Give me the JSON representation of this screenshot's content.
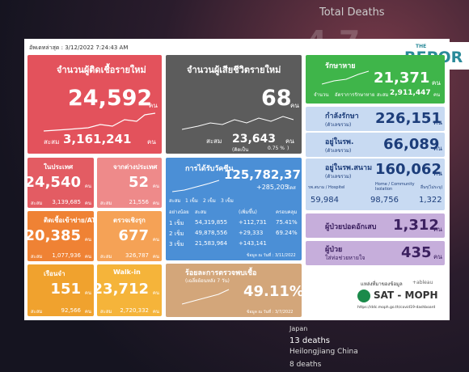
{
  "header": {
    "updated": "อัพเดทล่าสุด : 3/12/2022 7:24:43 AM"
  },
  "background": {
    "title": "Total Deaths",
    "items": [
      "Japan",
      "13 deaths",
      "Heilongjiang China",
      "8 deaths"
    ]
  },
  "logo": {
    "top": "THE",
    "main": "REPOR"
  },
  "new_cases": {
    "title": "จำนวนผู้ติดเชื้อรายใหม่",
    "value": "24,592",
    "unit": "คน",
    "total_label": "สะสม",
    "total": "3,161,241",
    "total_unit": "คน"
  },
  "new_deaths": {
    "title": "จำนวนผู้เสียชีวิตรายใหม่",
    "value": "68",
    "unit": "คน",
    "total_label": "สะสม",
    "total": "23,643",
    "total_unit": "คน",
    "pct_open": "(คิดเป็น",
    "pct": "0.75 %",
    "pct_close": ")"
  },
  "recovered": {
    "title": "รักษาหาย",
    "value": "21,371",
    "unit": "คน",
    "legend": [
      "จำนวน",
      "อัตราการรักษาหาย"
    ],
    "total_label": "สะสม",
    "total": "2,911,447",
    "total_unit": "คน"
  },
  "treating": {
    "title": "กำลังรักษา",
    "sub": "(ตัวเลขรวม)",
    "value": "226,151",
    "unit": "คน"
  },
  "hospital": {
    "title": "อยู่ในรพ.",
    "sub": "(ตัวเลขรวม)",
    "value": "66,089",
    "unit": "คน"
  },
  "field": {
    "title": "อยู่ในรพ.สนาม",
    "sub": "(ตัวเลขรวม)",
    "value": "160,062",
    "unit": "คน",
    "parts": [
      {
        "label": "รพ.สนาม / Hospitel",
        "value": "59,984"
      },
      {
        "label": "Home / Community Isolation",
        "value": "98,756"
      },
      {
        "label": "อื่นๆ(ไม่ระบุ)",
        "value": "1,322"
      }
    ]
  },
  "pneumonia": {
    "title": "ผู้ป่วยปอดอักเสบ",
    "value": "1,312",
    "unit": "คน"
  },
  "ventilator": {
    "title": "ผู้ป่วย",
    "title2": "ใส่ท่อช่วยหายใจ",
    "value": "435",
    "unit": "คน"
  },
  "small": [
    {
      "title": "ในประเทศ",
      "value": "24,540",
      "unit": "คน",
      "total_label": "สะสม",
      "total": "3,139,685",
      "total_unit": "คน"
    },
    {
      "title": "จากต่างประเทศ",
      "value": "52",
      "unit": "คน",
      "total_label": "สะสม",
      "total": "21,556",
      "total_unit": "คน"
    },
    {
      "title": "ติดเชื้อเข้าข่าย/ATK",
      "value": "20,385",
      "unit": "คน",
      "total_label": "สะสม",
      "total": "1,077,936",
      "total_unit": "คน"
    },
    {
      "title": "ตรวจเชิงรุก",
      "value": "677",
      "unit": "คน",
      "total_label": "สะสม",
      "total": "326,787",
      "total_unit": "คน"
    },
    {
      "title": "เรือนจำ",
      "value": "151",
      "unit": "คน",
      "total_label": "สะสม",
      "total": "92,566",
      "total_unit": "คน"
    },
    {
      "title": "Walk-in",
      "value": "23,712",
      "unit": "คน",
      "total_label": "สะสม",
      "total": "2,720,332",
      "total_unit": "คน"
    }
  ],
  "vaccine": {
    "title": "การได้รับวัคซีน",
    "total": "125,782,375",
    "unit": "โดส",
    "increase": "+285,205",
    "legend": [
      "สะสม",
      "1 เข็ม",
      "2 เข็ม",
      "3 เข็ม"
    ],
    "columns": [
      "อย่างน้อย",
      "สะสม",
      "(เพิ่มขึ้น)",
      "ครอบคลุม"
    ],
    "rows": [
      [
        "1 เข็ม",
        "54,319,855",
        "+112,731",
        "75.41%"
      ],
      [
        "2 เข็ม",
        "49,878,556",
        "+29,333",
        "69.24%"
      ],
      [
        "3 เข็ม",
        "21,583,964",
        "+143,141"
      ]
    ],
    "date": "ข้อมูล ณ วันที่ : 3/11/2022"
  },
  "positivity": {
    "title": "ร้อยละการตรวจพบเชื้อ",
    "sub": "(เฉลี่ยย้อนหลัง 7 วัน)",
    "value": "49.11%",
    "date": "ข้อมูล ณ วันที่ : 3/7/2022"
  },
  "source": {
    "label": "แหล่งที่มาของข้อมูล",
    "tableau": "+ableau",
    "name": "SAT - MOPH",
    "url": "https://ddc.moph.go.th/covid19-dashboard"
  }
}
